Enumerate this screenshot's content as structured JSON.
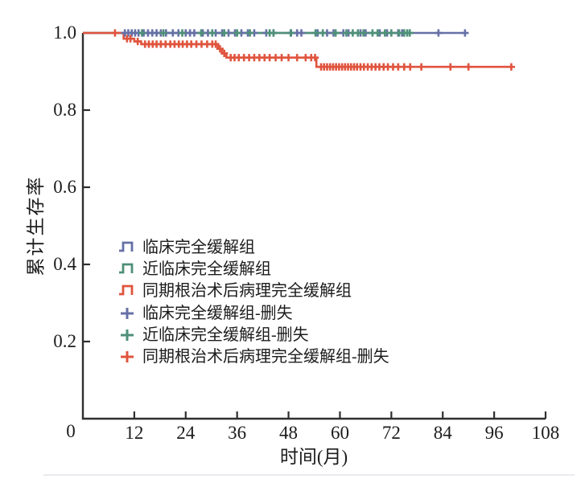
{
  "figure": {
    "y_axis": {
      "label": "累计生存率",
      "tick_labels": [
        "1.0",
        "0.8",
        "0.6",
        "0.4",
        "0.2"
      ]
    },
    "x_axis": {
      "label": "时间(月)",
      "tick_labels": [
        "0",
        "12",
        "24",
        "36",
        "48",
        "60",
        "72",
        "84",
        "96",
        "108"
      ]
    }
  },
  "colors": {
    "clinical": "#6670a6",
    "near_clinical": "#4e9078",
    "pcr_surgery": "#e0543e",
    "axis": "#2f2f2f",
    "text": "#1c1c1c",
    "divider": "#ebebf0"
  },
  "legend": [
    {
      "label": "临床完全缓解组",
      "marker": "step",
      "color": "#6670a6"
    },
    {
      "label": "近临床完全缓解组",
      "marker": "step",
      "color": "#4e9078"
    },
    {
      "label": "同期根治术后病理完全缓解组",
      "marker": "step",
      "color": "#e0543e"
    },
    {
      "label": "临床完全缓解组-删失",
      "marker": "plus",
      "color": "#6670a6"
    },
    {
      "label": "近临床完全缓解组-删失",
      "marker": "plus",
      "color": "#4e9078"
    },
    {
      "label": "同期根治术后病理完全缓解组-删失",
      "marker": "plus",
      "color": "#e0543e"
    }
  ],
  "chart_data": {
    "type": "line",
    "subtype": "kaplan-meier-step",
    "title": "",
    "xlabel": "时间(月)",
    "ylabel": "累计生存率",
    "xlim": [
      0,
      108
    ],
    "ylim": [
      0,
      1.0
    ],
    "x_ticks": [
      0,
      12,
      24,
      36,
      48,
      60,
      72,
      84,
      96,
      108
    ],
    "y_ticks": [
      1.0,
      0.8,
      0.6,
      0.4,
      0.2
    ],
    "grid": false,
    "legend_position": "inside-left-middle",
    "series": [
      {
        "key": "clinical",
        "name": "临床完全缓解组",
        "color": "#6670a6",
        "steps": [
          [
            0,
            1.0
          ],
          [
            89.2,
            1.0
          ]
        ],
        "censored": [
          [
            9.8,
            1
          ],
          [
            10.6,
            1
          ],
          [
            11.4,
            1
          ],
          [
            12.2,
            1
          ],
          [
            13,
            1
          ],
          [
            14.2,
            1
          ],
          [
            15.2,
            1
          ],
          [
            16.2,
            1
          ],
          [
            17.2,
            1
          ],
          [
            18.2,
            1
          ],
          [
            19.4,
            1
          ],
          [
            21,
            1
          ],
          [
            22.3,
            1
          ],
          [
            24,
            1
          ],
          [
            25,
            1
          ],
          [
            26,
            1
          ],
          [
            28,
            1
          ],
          [
            29.2,
            1
          ],
          [
            31,
            1
          ],
          [
            32.5,
            1
          ],
          [
            34,
            1
          ],
          [
            35.5,
            1
          ],
          [
            37,
            1
          ],
          [
            38.5,
            1
          ],
          [
            40,
            1
          ],
          [
            42.8,
            1
          ],
          [
            44.5,
            1
          ],
          [
            48.6,
            1
          ],
          [
            50,
            1
          ],
          [
            51,
            1
          ],
          [
            54.8,
            1
          ],
          [
            57,
            1
          ],
          [
            58.5,
            1
          ],
          [
            60.8,
            1
          ],
          [
            62,
            1
          ],
          [
            64.8,
            1
          ],
          [
            66,
            1
          ],
          [
            69.3,
            1
          ],
          [
            71,
            1
          ],
          [
            73.6,
            1
          ],
          [
            74.5,
            1
          ],
          [
            83,
            1
          ],
          [
            89.2,
            1
          ]
        ]
      },
      {
        "key": "near-clinical",
        "name": "近临床完全缓解组",
        "color": "#4e9078",
        "steps": [
          [
            0,
            1.0
          ],
          [
            76.4,
            1.0
          ]
        ],
        "censored": [
          [
            13.8,
            1
          ],
          [
            18.8,
            1
          ],
          [
            23.2,
            1
          ],
          [
            27.6,
            1
          ],
          [
            30.2,
            1
          ],
          [
            33,
            1
          ],
          [
            36,
            1
          ],
          [
            39,
            1
          ],
          [
            43.6,
            1
          ],
          [
            44.5,
            1
          ],
          [
            48.5,
            1
          ],
          [
            54.3,
            1
          ],
          [
            56,
            1
          ],
          [
            59,
            1
          ],
          [
            61.5,
            1
          ],
          [
            63,
            1
          ],
          [
            64.2,
            1
          ],
          [
            65.5,
            1
          ],
          [
            67.6,
            1
          ],
          [
            68.8,
            1
          ],
          [
            70.5,
            1
          ],
          [
            72,
            1
          ],
          [
            73.8,
            1
          ],
          [
            75,
            1
          ],
          [
            75.7,
            1
          ],
          [
            76.3,
            1
          ]
        ]
      },
      {
        "key": "pcr-surgery",
        "name": "同期根治术后病理完全缓解组",
        "color": "#e0543e",
        "steps": [
          [
            0,
            1
          ],
          [
            9.5,
            1
          ],
          [
            9.5,
            0.985
          ],
          [
            12,
            0.985
          ],
          [
            12,
            0.978
          ],
          [
            13.6,
            0.978
          ],
          [
            13.6,
            0.971
          ],
          [
            31.5,
            0.971
          ],
          [
            31.5,
            0.959
          ],
          [
            32.5,
            0.959
          ],
          [
            32.5,
            0.947
          ],
          [
            33.5,
            0.947
          ],
          [
            33.5,
            0.936
          ],
          [
            54.5,
            0.936
          ],
          [
            54.5,
            0.912
          ],
          [
            100,
            0.912
          ]
        ],
        "censored": [
          [
            7.5,
            1
          ],
          [
            10.3,
            0.985
          ],
          [
            11.1,
            0.985
          ],
          [
            12.8,
            0.978
          ],
          [
            14.5,
            0.971
          ],
          [
            15.4,
            0.971
          ],
          [
            16.3,
            0.971
          ],
          [
            17.2,
            0.971
          ],
          [
            18.2,
            0.971
          ],
          [
            19.3,
            0.971
          ],
          [
            20.4,
            0.971
          ],
          [
            21.4,
            0.971
          ],
          [
            22.4,
            0.971
          ],
          [
            23.3,
            0.971
          ],
          [
            24.3,
            0.971
          ],
          [
            25.3,
            0.971
          ],
          [
            26.5,
            0.971
          ],
          [
            27.7,
            0.971
          ],
          [
            29,
            0.971
          ],
          [
            30.2,
            0.971
          ],
          [
            31,
            0.971
          ],
          [
            32,
            0.959
          ],
          [
            33,
            0.947
          ],
          [
            34.5,
            0.936
          ],
          [
            35.4,
            0.936
          ],
          [
            36.4,
            0.936
          ],
          [
            37.6,
            0.936
          ],
          [
            38.8,
            0.936
          ],
          [
            40,
            0.936
          ],
          [
            41.2,
            0.936
          ],
          [
            42.4,
            0.936
          ],
          [
            43.6,
            0.936
          ],
          [
            45,
            0.936
          ],
          [
            46.4,
            0.936
          ],
          [
            48,
            0.936
          ],
          [
            50,
            0.936
          ],
          [
            52,
            0.936
          ],
          [
            53.3,
            0.936
          ],
          [
            54.2,
            0.936
          ],
          [
            55.6,
            0.912
          ],
          [
            56.3,
            0.912
          ],
          [
            57,
            0.912
          ],
          [
            57.7,
            0.912
          ],
          [
            58.4,
            0.912
          ],
          [
            59.1,
            0.912
          ],
          [
            59.8,
            0.912
          ],
          [
            60.5,
            0.912
          ],
          [
            61.2,
            0.912
          ],
          [
            61.9,
            0.912
          ],
          [
            62.6,
            0.912
          ],
          [
            63.3,
            0.912
          ],
          [
            64,
            0.912
          ],
          [
            64.8,
            0.912
          ],
          [
            65.6,
            0.912
          ],
          [
            66.5,
            0.912
          ],
          [
            67.4,
            0.912
          ],
          [
            68.3,
            0.912
          ],
          [
            69.2,
            0.912
          ],
          [
            70.2,
            0.912
          ],
          [
            71.2,
            0.912
          ],
          [
            72.4,
            0.912
          ],
          [
            73.6,
            0.912
          ],
          [
            75,
            0.912
          ],
          [
            76.4,
            0.912
          ],
          [
            79,
            0.912
          ],
          [
            85.8,
            0.912
          ],
          [
            90,
            0.912
          ],
          [
            100,
            0.912
          ]
        ]
      }
    ]
  }
}
